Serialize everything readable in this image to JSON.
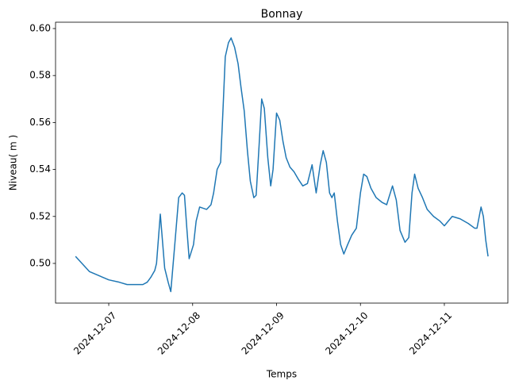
{
  "chart_data": {
    "type": "line",
    "title": "Bonnay",
    "xlabel": "Temps",
    "ylabel": "Niveau( m )",
    "color": "#1f77b4",
    "x": [
      "2024-12-06T14:30",
      "2024-12-06T18:30",
      "2024-12-07T00:00",
      "2024-12-07T03:00",
      "2024-12-07T05:15",
      "2024-12-07T09:45",
      "2024-12-07T11:00",
      "2024-12-07T12:00",
      "2024-12-07T13:10",
      "2024-12-07T13:40",
      "2024-12-07T14:45",
      "2024-12-07T16:00",
      "2024-12-07T17:00",
      "2024-12-07T17:45",
      "2024-12-07T19:00",
      "2024-12-07T20:00",
      "2024-12-07T21:00",
      "2024-12-07T21:40",
      "2024-12-07T22:20",
      "2024-12-07T23:00",
      "2024-12-08T00:15",
      "2024-12-08T01:00",
      "2024-12-08T02:00",
      "2024-12-08T04:00",
      "2024-12-08T05:15",
      "2024-12-08T06:00",
      "2024-12-08T07:00",
      "2024-12-08T08:00",
      "2024-12-08T08:40",
      "2024-12-08T09:20",
      "2024-12-08T10:15",
      "2024-12-08T11:00",
      "2024-12-08T12:00",
      "2024-12-08T13:00",
      "2024-12-08T13:50",
      "2024-12-08T14:45",
      "2024-12-08T15:40",
      "2024-12-08T16:30",
      "2024-12-08T17:30",
      "2024-12-08T18:10",
      "2024-12-08T19:00",
      "2024-12-08T19:45",
      "2024-12-08T20:30",
      "2024-12-08T21:30",
      "2024-12-08T22:20",
      "2024-12-08T23:00",
      "2024-12-09T00:00",
      "2024-12-09T00:55",
      "2024-12-09T01:50",
      "2024-12-09T02:45",
      "2024-12-09T03:50",
      "2024-12-09T05:00",
      "2024-12-09T06:10",
      "2024-12-09T07:30",
      "2024-12-09T08:50",
      "2024-12-09T10:10",
      "2024-12-09T11:20",
      "2024-12-09T12:30",
      "2024-12-09T13:20",
      "2024-12-09T14:15",
      "2024-12-09T15:10",
      "2024-12-09T15:50",
      "2024-12-09T16:30",
      "2024-12-09T17:25",
      "2024-12-09T18:20",
      "2024-12-09T19:15",
      "2024-12-09T20:20",
      "2024-12-09T21:30",
      "2024-12-09T22:50",
      "2024-12-10T00:00",
      "2024-12-10T00:55",
      "2024-12-10T01:50",
      "2024-12-10T03:00",
      "2024-12-10T04:30",
      "2024-12-10T06:10",
      "2024-12-10T07:30",
      "2024-12-10T09:10",
      "2024-12-10T10:15",
      "2024-12-10T11:20",
      "2024-12-10T12:45",
      "2024-12-10T13:50",
      "2024-12-10T14:45",
      "2024-12-10T15:30",
      "2024-12-10T16:30",
      "2024-12-10T17:45",
      "2024-12-10T19:05",
      "2024-12-10T20:55",
      "2024-12-10T22:45",
      "2024-12-11T00:00",
      "2024-12-11T02:15",
      "2024-12-11T04:30",
      "2024-12-11T06:50",
      "2024-12-11T08:40",
      "2024-12-11T09:20",
      "2024-12-11T10:30",
      "2024-12-11T11:10",
      "2024-12-11T11:50",
      "2024-12-11T12:30"
    ],
    "values": [
      0.503,
      0.4965,
      0.493,
      0.492,
      0.491,
      0.491,
      0.492,
      0.494,
      0.497,
      0.5,
      0.521,
      0.498,
      0.492,
      0.488,
      0.51,
      0.528,
      0.53,
      0.529,
      0.515,
      0.502,
      0.508,
      0.518,
      0.524,
      0.523,
      0.525,
      0.53,
      0.54,
      0.543,
      0.565,
      0.588,
      0.594,
      0.596,
      0.592,
      0.585,
      0.575,
      0.565,
      0.548,
      0.535,
      0.528,
      0.529,
      0.55,
      0.57,
      0.566,
      0.545,
      0.533,
      0.54,
      0.564,
      0.561,
      0.552,
      0.545,
      0.541,
      0.539,
      0.536,
      0.533,
      0.534,
      0.542,
      0.53,
      0.542,
      0.548,
      0.543,
      0.53,
      0.528,
      0.53,
      0.518,
      0.508,
      0.504,
      0.508,
      0.512,
      0.515,
      0.53,
      0.538,
      0.537,
      0.532,
      0.528,
      0.526,
      0.525,
      0.533,
      0.527,
      0.514,
      0.509,
      0.511,
      0.53,
      0.538,
      0.532,
      0.528,
      0.523,
      0.52,
      0.518,
      0.516,
      0.52,
      0.519,
      0.517,
      0.515,
      0.515,
      0.524,
      0.52,
      0.51,
      0.503
    ],
    "xlim": [
      "2024-12-06T08:47",
      "2024-12-11T18:10"
    ],
    "xticks": [
      "2024-12-07",
      "2024-12-08",
      "2024-12-09",
      "2024-12-10",
      "2024-12-11"
    ],
    "ylim": [
      0.4831,
      0.6027
    ],
    "yticks": [
      {
        "value": 0.5,
        "label": "0.50"
      },
      0.52,
      0.54,
      0.56,
      0.58,
      {
        "value": 0.6,
        "label": "0.60"
      }
    ]
  }
}
